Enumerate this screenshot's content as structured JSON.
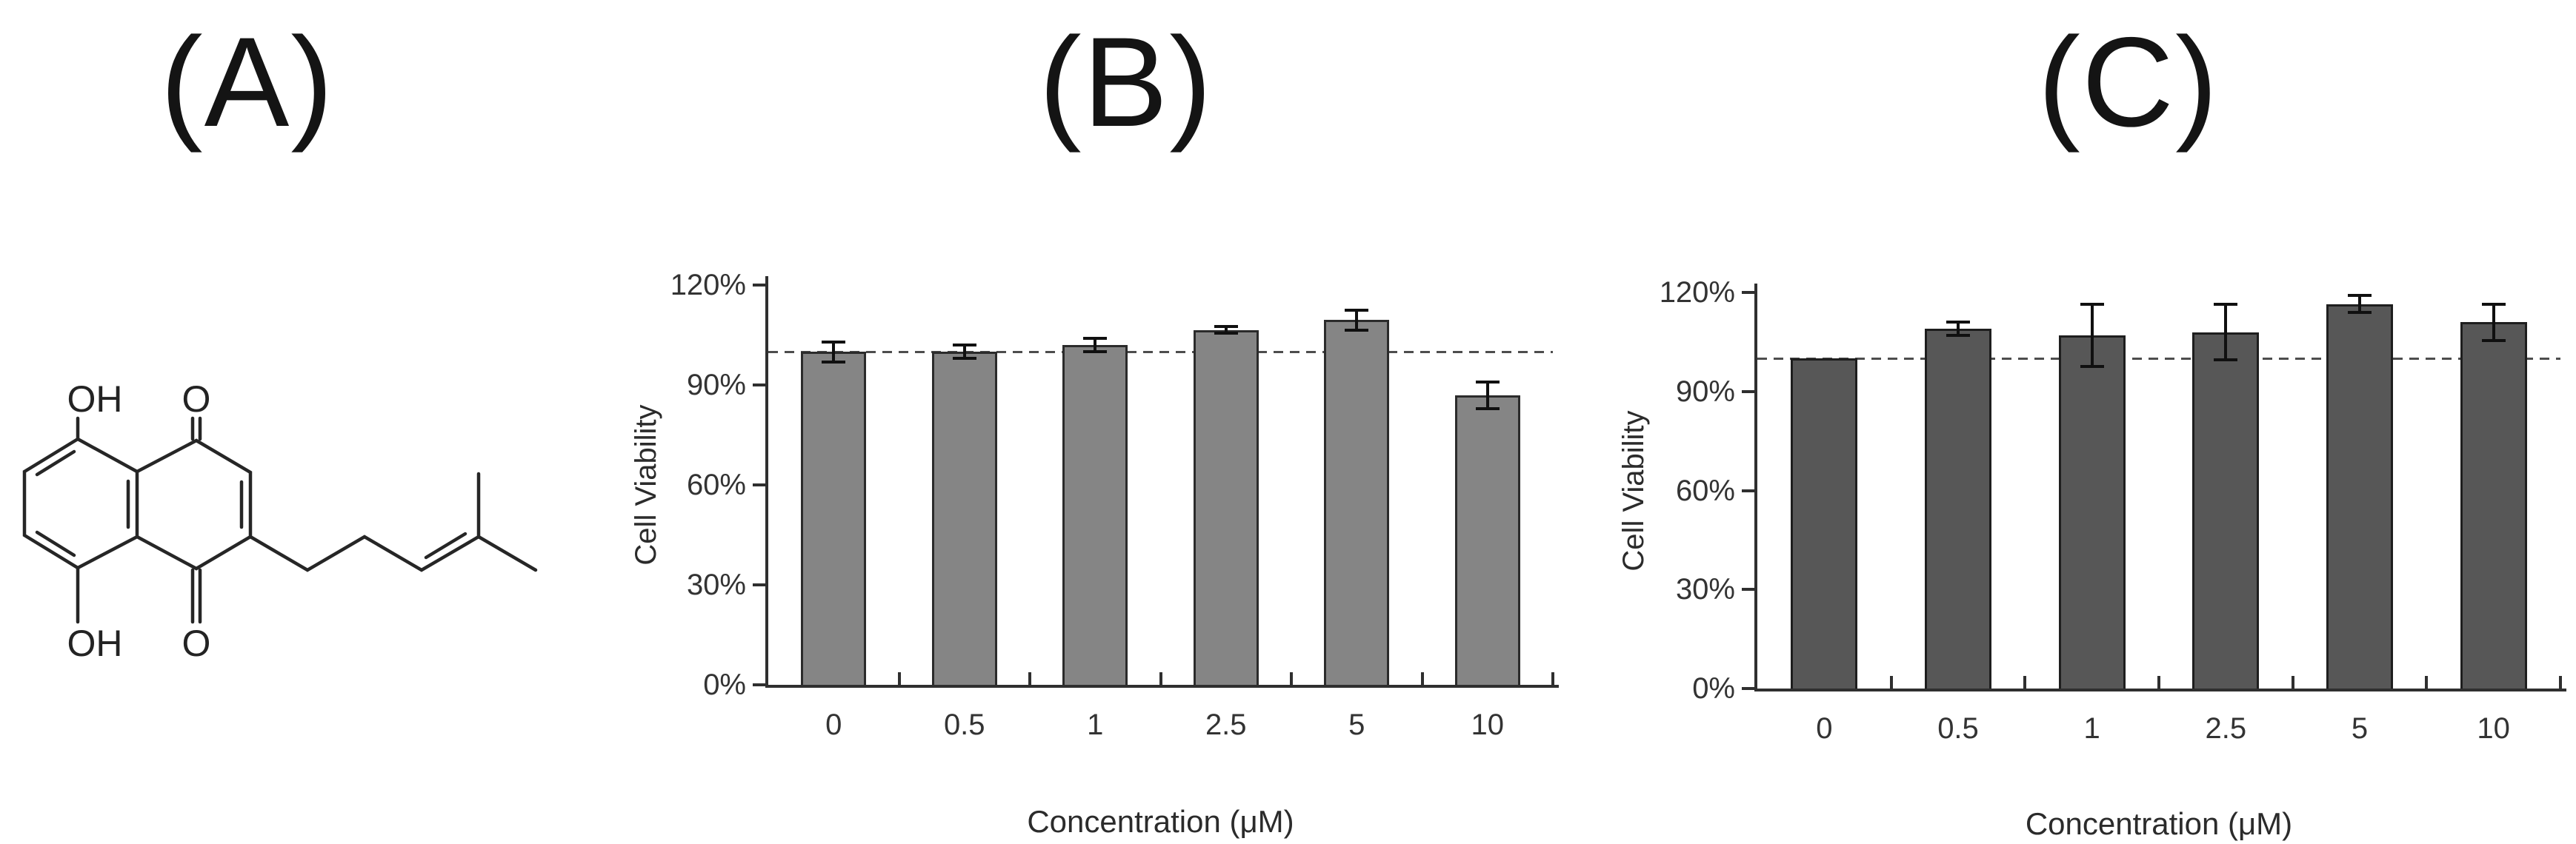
{
  "figure": {
    "panels": [
      {
        "id": "A",
        "label": "(A)"
      },
      {
        "id": "B",
        "label": "(B)"
      },
      {
        "id": "C",
        "label": "(C)"
      }
    ]
  },
  "molecule": {
    "description": "5,8-dihydroxy-2-(4-methylpent-3-enyl)naphthalene-1,4-dione skeletal structure",
    "atom_labels": {
      "oh_top": "OH",
      "o_top": "O",
      "oh_bottom": "OH",
      "o_bottom": "O"
    }
  },
  "chart_data": [
    {
      "panel": "B",
      "type": "bar",
      "title": "",
      "xlabel": "Concentration (μM)",
      "ylabel": "Cell Viability",
      "categories": [
        "0",
        "0.5",
        "1",
        "2.5",
        "5",
        "10"
      ],
      "values": [
        100,
        100,
        102,
        106.5,
        109.5,
        87
      ],
      "errors": [
        3,
        2,
        2,
        1,
        3,
        4
      ],
      "y_ticks": [
        "0%",
        "30%",
        "60%",
        "90%",
        "120%"
      ],
      "ylim": [
        0,
        120
      ],
      "grid": false,
      "legend": "none",
      "reference_line": 100,
      "bar_color": "#858585",
      "bar_border": "#2b2b2b"
    },
    {
      "panel": "C",
      "type": "bar",
      "title": "",
      "xlabel": "Concentration (μM)",
      "ylabel": "Cell Viability",
      "categories": [
        "0",
        "0.5",
        "1",
        "2.5",
        "5",
        "10"
      ],
      "values": [
        100,
        109,
        107,
        108,
        116.5,
        111
      ],
      "errors": [
        0,
        2,
        9.5,
        8.5,
        2.5,
        5.5
      ],
      "y_ticks": [
        "0%",
        "30%",
        "60%",
        "90%",
        "120%"
      ],
      "ylim": [
        0,
        120
      ],
      "grid": false,
      "legend": "none",
      "reference_line": 100,
      "bar_color": "#575757",
      "bar_border": "#1e1e1e"
    }
  ]
}
